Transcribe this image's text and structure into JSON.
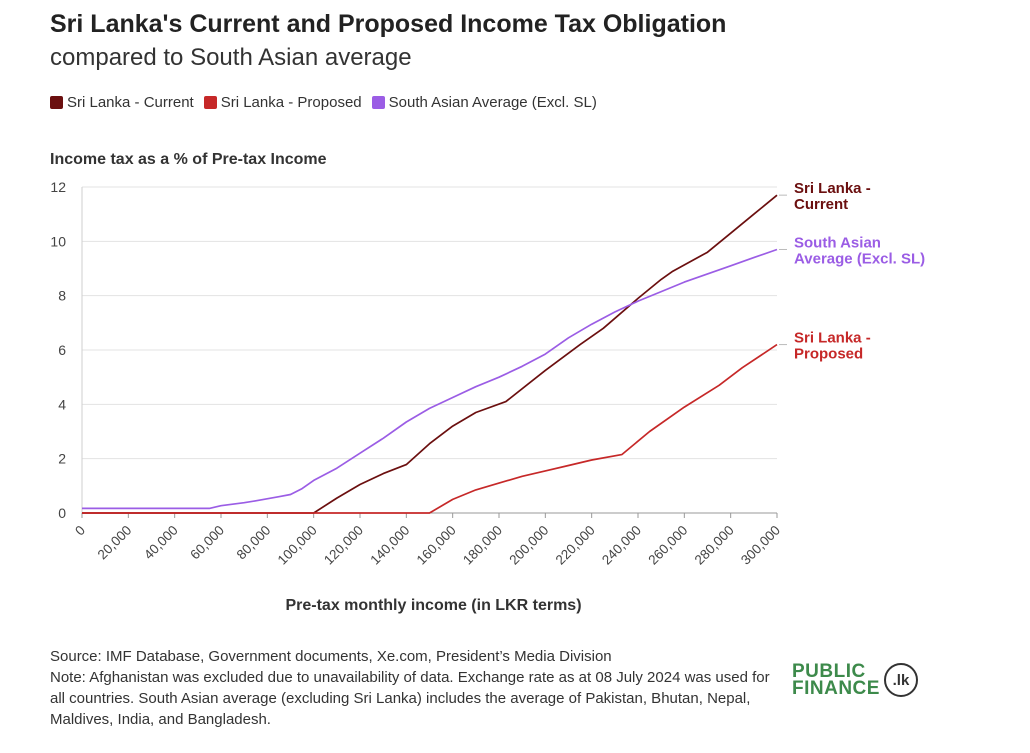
{
  "header": {
    "title": "Sri Lanka's Current and Proposed Income Tax Obligation",
    "subtitle": "compared to South Asian average"
  },
  "legend": [
    {
      "label": "Sri Lanka - Current",
      "color": "#6b0f0f"
    },
    {
      "label": "Sri Lanka - Proposed",
      "color": "#c62828"
    },
    {
      "label": "South Asian Average (Excl. SL)",
      "color": "#9b5de5"
    }
  ],
  "chart_data": {
    "type": "line",
    "ylabel": "Income tax as a % of Pre-tax Income",
    "xlabel": "Pre-tax monthly income (in LKR terms)",
    "xlim": [
      0,
      300000
    ],
    "ylim": [
      0,
      12
    ],
    "x_ticks": [
      "0",
      "20,000",
      "40,000",
      "60,000",
      "80,000",
      "100,000",
      "120,000",
      "140,000",
      "160,000",
      "180,000",
      "200,000",
      "220,000",
      "240,000",
      "260,000",
      "280,000",
      "300,000"
    ],
    "x_tick_values": [
      0,
      20000,
      40000,
      60000,
      80000,
      100000,
      120000,
      140000,
      160000,
      180000,
      200000,
      220000,
      240000,
      260000,
      280000,
      300000
    ],
    "y_ticks": [
      "0",
      "2",
      "4",
      "6",
      "8",
      "10",
      "12"
    ],
    "y_tick_values": [
      0,
      2,
      4,
      6,
      8,
      10,
      12
    ],
    "grid": true,
    "series": [
      {
        "name": "Sri Lanka - Current",
        "end_label": [
          "Sri Lanka -",
          "Current"
        ],
        "color": "#6b0f0f",
        "points": [
          [
            0,
            0
          ],
          [
            100000,
            0
          ],
          [
            110000,
            0.55
          ],
          [
            120000,
            1.05
          ],
          [
            130000,
            1.45
          ],
          [
            140000,
            1.78
          ],
          [
            150000,
            2.55
          ],
          [
            160000,
            3.2
          ],
          [
            170000,
            3.7
          ],
          [
            183000,
            4.1
          ],
          [
            200000,
            5.25
          ],
          [
            215000,
            6.2
          ],
          [
            225000,
            6.8
          ],
          [
            240000,
            7.9
          ],
          [
            250000,
            8.6
          ],
          [
            255000,
            8.9
          ],
          [
            270000,
            9.6
          ],
          [
            280000,
            10.3
          ],
          [
            290000,
            11.0
          ],
          [
            300000,
            11.7
          ]
        ]
      },
      {
        "name": "South Asian Average (Excl. SL)",
        "end_label": [
          "South Asian",
          "Average (Excl. SL)"
        ],
        "color": "#9b5de5",
        "points": [
          [
            0,
            0.17
          ],
          [
            55000,
            0.17
          ],
          [
            60000,
            0.27
          ],
          [
            70000,
            0.38
          ],
          [
            75000,
            0.45
          ],
          [
            85000,
            0.6
          ],
          [
            90000,
            0.68
          ],
          [
            95000,
            0.9
          ],
          [
            100000,
            1.2
          ],
          [
            110000,
            1.65
          ],
          [
            120000,
            2.2
          ],
          [
            130000,
            2.75
          ],
          [
            140000,
            3.35
          ],
          [
            150000,
            3.85
          ],
          [
            160000,
            4.25
          ],
          [
            170000,
            4.65
          ],
          [
            180000,
            5.0
          ],
          [
            190000,
            5.4
          ],
          [
            200000,
            5.85
          ],
          [
            210000,
            6.45
          ],
          [
            220000,
            6.95
          ],
          [
            230000,
            7.4
          ],
          [
            240000,
            7.8
          ],
          [
            250000,
            8.15
          ],
          [
            260000,
            8.5
          ],
          [
            270000,
            8.8
          ],
          [
            280000,
            9.1
          ],
          [
            290000,
            9.4
          ],
          [
            300000,
            9.7
          ]
        ]
      },
      {
        "name": "Sri Lanka - Proposed",
        "end_label": [
          "Sri Lanka -",
          "Proposed"
        ],
        "color": "#c62828",
        "points": [
          [
            0,
            0
          ],
          [
            150000,
            0
          ],
          [
            160000,
            0.5
          ],
          [
            170000,
            0.85
          ],
          [
            180000,
            1.1
          ],
          [
            190000,
            1.35
          ],
          [
            200000,
            1.55
          ],
          [
            210000,
            1.75
          ],
          [
            220000,
            1.95
          ],
          [
            233000,
            2.15
          ],
          [
            245000,
            3.0
          ],
          [
            260000,
            3.9
          ],
          [
            275000,
            4.7
          ],
          [
            285000,
            5.35
          ],
          [
            300000,
            6.2
          ]
        ]
      }
    ]
  },
  "footer": {
    "source": "Source: IMF Database, Government documents, Xe.com, President’s Media Division",
    "note": "Note: Afghanistan was excluded due to unavailability of data. Exchange rate as at 08 July 2024 was used for all countries. South Asian average (excluding Sri Lanka) includes the average of Pakistan, Bhutan, Nepal, Maldives, India, and Bangladesh."
  },
  "logo": {
    "line1": "PUBLIC",
    "line2": "FINANCE",
    "badge": ".lk"
  }
}
